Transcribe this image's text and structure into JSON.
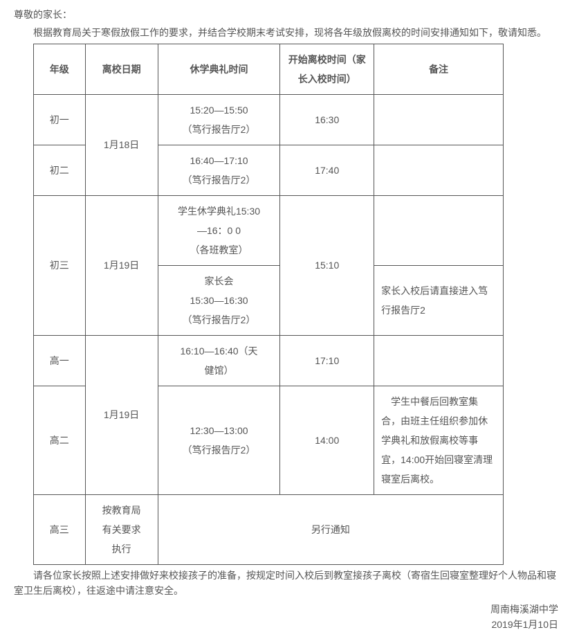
{
  "salutation": "尊敬的家长：",
  "intro": "根据教育局关于寒假放假工作的要求，并结合学校期末考试安排，现将各年级放假离校的时间安排通知如下，敬请知悉。",
  "headers": {
    "grade": "年级",
    "leave_date": "离校日期",
    "ceremony_time": "休学典礼时间",
    "leave_time": "开始离校时间（家长入校时间）",
    "note": "备注"
  },
  "rows": {
    "g7": {
      "grade": "初一",
      "date": "1月18日",
      "ceremony_line1": "15:20—15:50",
      "ceremony_line2": "（笃行报告厅2）",
      "leave": "16:30",
      "note": ""
    },
    "g8": {
      "grade": "初二",
      "ceremony_line1": "16:40—17:10",
      "ceremony_line2": "（笃行报告厅2）",
      "leave": "17:40",
      "note": ""
    },
    "g9": {
      "grade": "初三",
      "date": "1月19日",
      "ceremony_a_line1": "学生休学典礼15:30",
      "ceremony_a_line2": "—16：0 0",
      "ceremony_a_line3": "（各班教室）",
      "note_a": "",
      "ceremony_b_line1": "家长会",
      "ceremony_b_line2": "15:30—16:30",
      "ceremony_b_line3": "（笃行报告厅2）",
      "leave": "15:10",
      "note_b": "家长入校后请直接进入笃行报告厅2"
    },
    "g10": {
      "grade": "高一",
      "date": "1月19日",
      "ceremony_line1": "16:10—16:40（天",
      "ceremony_line2": "健馆）",
      "leave": "17:10",
      "note": ""
    },
    "g11": {
      "grade": "高二",
      "ceremony_line1": "12:30—13:00",
      "ceremony_line2": "（笃行报告厅2）",
      "leave": "14:00",
      "note": "　学生中餐后回教室集合，由班主任组织参加休学典礼和放假离校等事宜，14:00开始回寝室清理寝室后离校。"
    },
    "g12": {
      "grade": "高三",
      "date_line1": "按教育局",
      "date_line2": "有关要求",
      "date_line3": "执行",
      "other": "另行通知"
    }
  },
  "footer_para": "请各位家长按照上述安排做好来校接孩子的准备，按规定时间入校后到教室接孩子离校（寄宿生回寝室整理好个人物品和寝室卫生后离校），往返途中请注意安全。",
  "signature": "周南梅溪湖中学",
  "sign_date": "2019年1月10日"
}
